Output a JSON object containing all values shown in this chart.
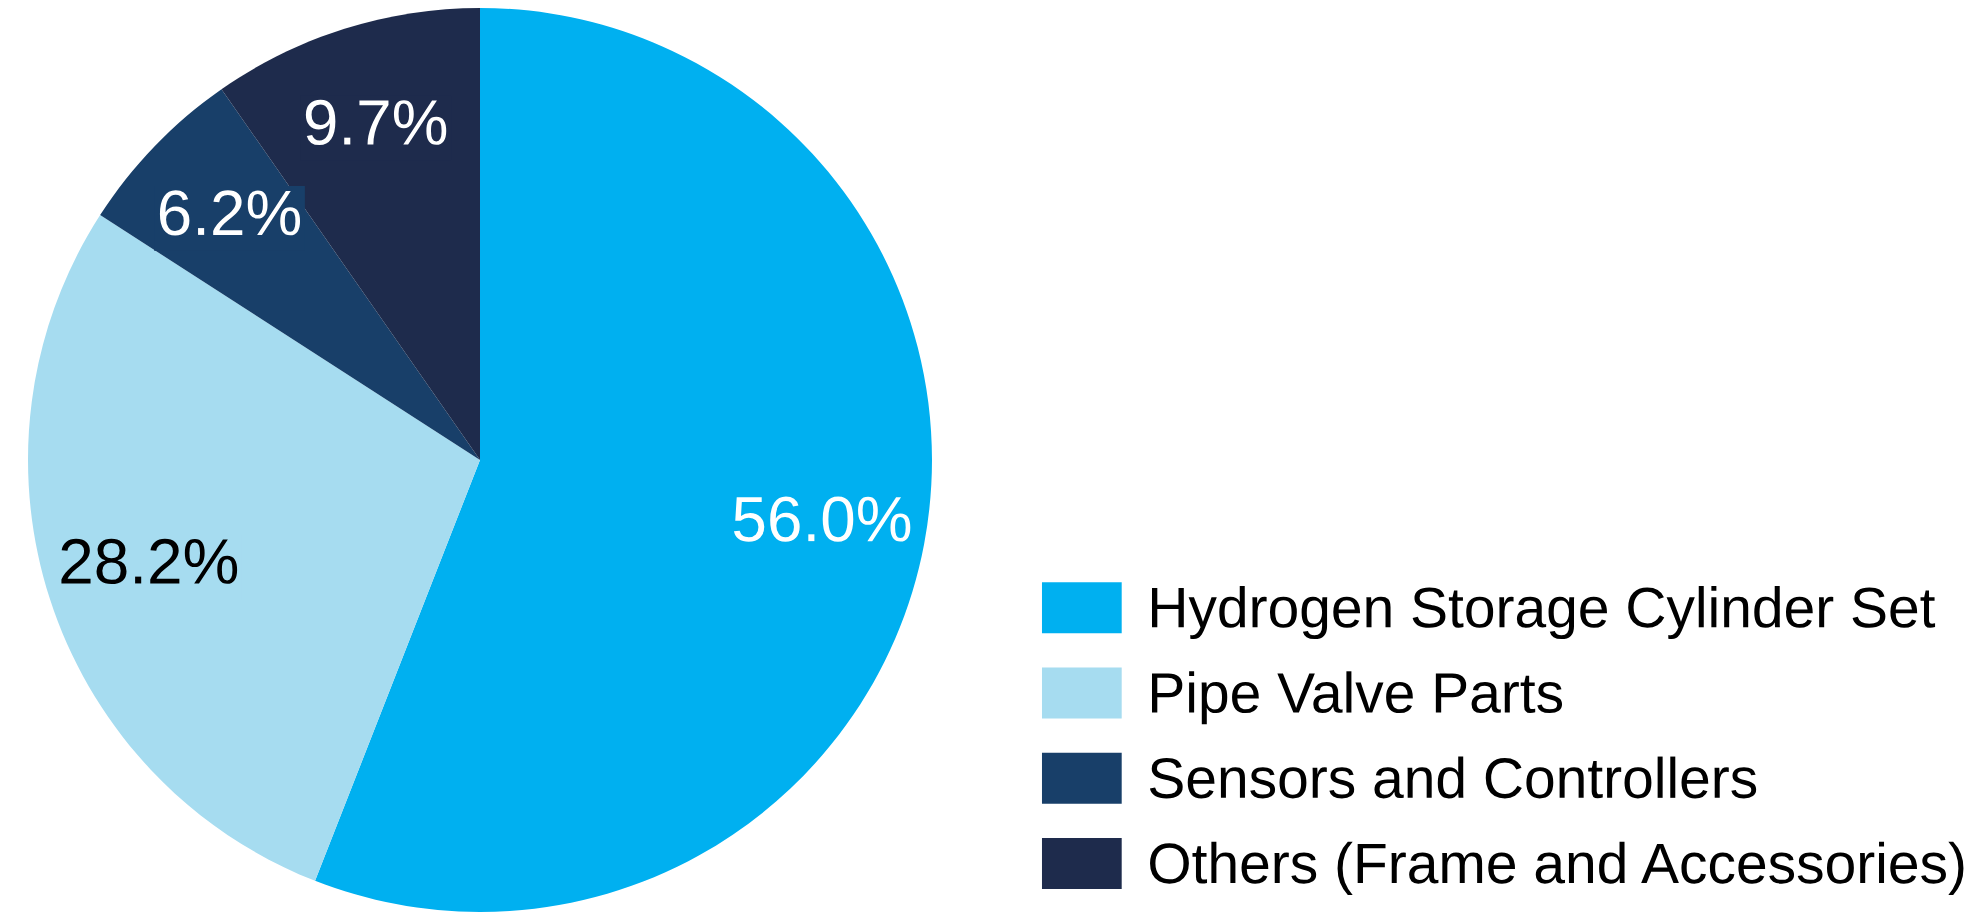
{
  "chart_data": {
    "type": "pie",
    "categories": [
      "Hydrogen Storage Cylinder Set",
      "Pipe Valve Parts",
      "Sensors and Controllers",
      "Others (Frame and Accessories)"
    ],
    "values": [
      56.0,
      28.2,
      6.2,
      9.7
    ],
    "value_labels": [
      "56.0%",
      "28.2%",
      "6.2%",
      "9.7%"
    ],
    "colors": [
      "#00b0f0",
      "#a6dcf0",
      "#183f69",
      "#1e2b4c"
    ],
    "legend": "bottom right"
  }
}
